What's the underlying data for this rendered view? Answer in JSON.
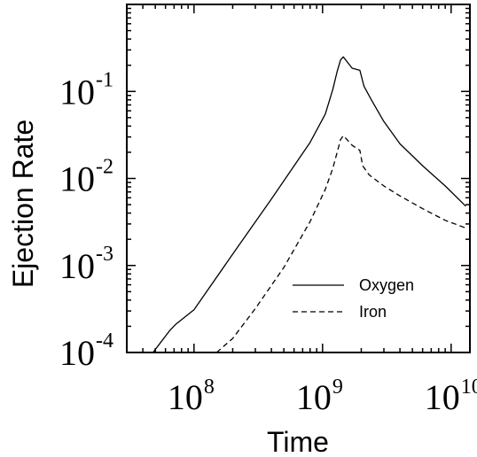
{
  "chart_data": {
    "type": "line",
    "title": "",
    "xlabel": "Time",
    "ylabel": "Ejection Rate",
    "x_scale": "log",
    "y_scale": "log",
    "xlim": [
      30000000,
      14000000000
    ],
    "ylim": [
      0.0001,
      1
    ],
    "x_ticks": [
      {
        "value": 100000000,
        "base": "10",
        "exp": "8"
      },
      {
        "value": 1000000000,
        "base": "10",
        "exp": "9"
      },
      {
        "value": 10000000000,
        "base": "10",
        "exp": "10"
      }
    ],
    "y_ticks": [
      {
        "value": 0.0001,
        "base": "10",
        "exp": "-4"
      },
      {
        "value": 0.001,
        "base": "10",
        "exp": "-3"
      },
      {
        "value": 0.01,
        "base": "10",
        "exp": "-2"
      },
      {
        "value": 0.1,
        "base": "10",
        "exp": "-1"
      }
    ],
    "grid": false,
    "legend_position": "lower-right",
    "series": [
      {
        "name": "Oxygen",
        "style": "solid",
        "color": "#000000",
        "x": [
          48000000,
          56000000,
          65000000,
          72000000,
          100000000,
          200000000,
          400000000,
          800000000,
          1050000000,
          1200000000,
          1300000000,
          1380000000,
          1450000000,
          1550000000,
          1700000000,
          1950000000,
          2100000000,
          2400000000,
          3000000000,
          4000000000,
          6000000000,
          9000000000,
          13000000000
        ],
        "y": [
          0.0001,
          0.000135,
          0.00018,
          0.00021,
          0.00031,
          0.00135,
          0.0058,
          0.026,
          0.055,
          0.105,
          0.17,
          0.23,
          0.25,
          0.22,
          0.185,
          0.175,
          0.115,
          0.08,
          0.045,
          0.025,
          0.014,
          0.0082,
          0.0048
        ]
      },
      {
        "name": "Iron",
        "style": "dashed",
        "color": "#000000",
        "x": [
          150000000,
          200000000,
          300000000,
          500000000,
          800000000,
          1050000000,
          1200000000,
          1300000000,
          1380000000,
          1450000000,
          1550000000,
          1700000000,
          1950000000,
          2050000000,
          2300000000,
          3000000000,
          4000000000,
          6000000000,
          9000000000,
          13000000000
        ],
        "y": [
          0.0001,
          0.000145,
          0.00032,
          0.00095,
          0.0032,
          0.0075,
          0.013,
          0.02,
          0.028,
          0.031,
          0.028,
          0.024,
          0.021,
          0.014,
          0.011,
          0.0082,
          0.0063,
          0.0045,
          0.0033,
          0.0027
        ]
      }
    ]
  }
}
